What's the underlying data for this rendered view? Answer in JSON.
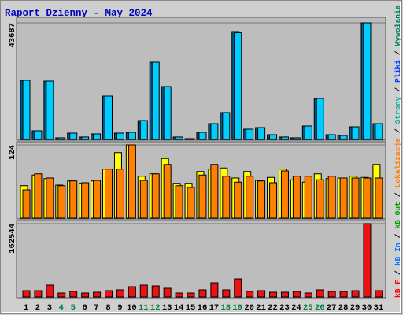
{
  "title": "Raport Dzienny -  May 2024",
  "legend_separator": "/",
  "legend": [
    {
      "text": "kB F",
      "color": "#ff0000"
    },
    {
      "text": "kB In",
      "color": "#0070ff"
    },
    {
      "text": "kB Out",
      "color": "#00a000"
    },
    {
      "text": "Lokalizacje",
      "color": "#ff8000"
    },
    {
      "text": "Strony",
      "color": "#00b0a0"
    },
    {
      "text": "Pliki",
      "color": "#0040ff"
    },
    {
      "text": "Wywołania",
      "color": "#008060"
    }
  ],
  "chart_data": [
    {
      "type": "bar",
      "ylim": [
        0,
        43687
      ],
      "yticks": [
        43687
      ],
      "series": [
        {
          "name": "Wywołania",
          "color": "#005a8c",
          "values": [
            22140,
            3250,
            21840,
            600,
            2360,
            900,
            2070,
            16230,
            2360,
            2660,
            7080,
            28930,
            19780,
            900,
            300,
            2660,
            5900,
            10040,
            40440,
            3840,
            4430,
            1770,
            900,
            600,
            5020,
            15350,
            1770,
            1480,
            4720,
            43687,
            5900
          ]
        },
        {
          "name": "Strony",
          "color": "#00ccff",
          "values": [
            22140,
            3250,
            21840,
            600,
            2360,
            900,
            2070,
            16230,
            2360,
            2660,
            7080,
            28930,
            19780,
            900,
            300,
            2660,
            5900,
            10040,
            40000,
            3840,
            4430,
            1770,
            900,
            600,
            5020,
            15350,
            1770,
            1480,
            4720,
            43687,
            5900
          ]
        }
      ]
    },
    {
      "type": "bar",
      "ylim": [
        0,
        124
      ],
      "yticks": [
        124
      ],
      "series": [
        {
          "color": "#ffff00",
          "values": [
            55,
            73,
            67,
            56,
            63,
            59,
            63,
            83,
            111,
            124,
            71,
            75,
            101,
            59,
            59,
            79,
            83,
            85,
            68,
            79,
            64,
            69,
            83,
            65,
            61,
            75,
            67,
            68,
            71,
            69,
            91
          ]
        },
        {
          "name": "Lokalizacje",
          "color": "#ff8000",
          "values": [
            48,
            75,
            68,
            55,
            63,
            60,
            64,
            83,
            83,
            124,
            64,
            75,
            91,
            55,
            52,
            73,
            91,
            71,
            61,
            71,
            63,
            60,
            80,
            71,
            71,
            65,
            71,
            68,
            68,
            68,
            68
          ]
        }
      ]
    },
    {
      "type": "bar",
      "ylim": [
        0,
        162544
      ],
      "yticks": [
        162544
      ],
      "categories": [
        "1",
        "2",
        "3",
        "4",
        "5",
        "6",
        "7",
        "8",
        "9",
        "10",
        "11",
        "12",
        "13",
        "14",
        "15",
        "16",
        "17",
        "18",
        "19",
        "20",
        "21",
        "22",
        "23",
        "24",
        "25",
        "26",
        "27",
        "28",
        "29",
        "30",
        "31"
      ],
      "label_colors": [
        "#000000",
        "#000000",
        "#000000",
        "#008040",
        "#008040",
        "#000000",
        "#000000",
        "#000000",
        "#000000",
        "#000000",
        "#008040",
        "#008040",
        "#000000",
        "#000000",
        "#000000",
        "#000000",
        "#000000",
        "#008040",
        "#008040",
        "#000000",
        "#000000",
        "#000000",
        "#000000",
        "#000000",
        "#008040",
        "#008040",
        "#000000",
        "#000000",
        "#000000",
        "#000000",
        "#000000"
      ],
      "series": [
        {
          "name": "kB F",
          "color": "#ee1111",
          "values": [
            14000,
            14000,
            26200,
            8740,
            12230,
            8740,
            10490,
            14000,
            15730,
            22720,
            26200,
            24470,
            19230,
            8740,
            8740,
            15730,
            31460,
            15730,
            40200,
            12230,
            14000,
            10490,
            10490,
            12230,
            8740,
            15730,
            12230,
            12230,
            14000,
            162544,
            14000
          ]
        }
      ]
    }
  ]
}
